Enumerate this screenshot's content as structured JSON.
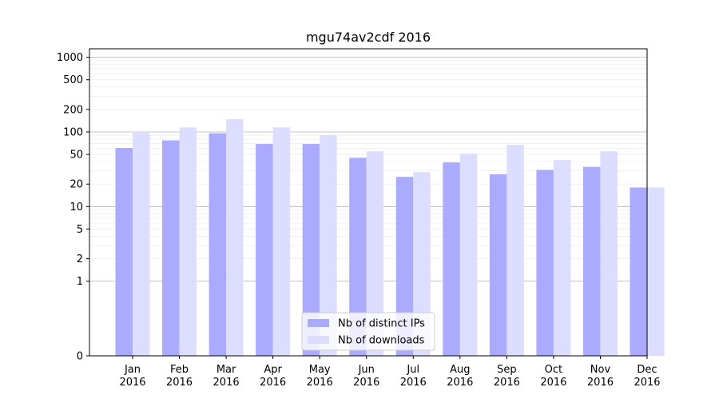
{
  "chart_data": {
    "type": "bar",
    "title": "mgu74av2cdf 2016",
    "xlabel": "",
    "ylabel": "",
    "yscale": "symlog",
    "ylim": [
      0,
      1300
    ],
    "y_ticks": [
      0,
      1,
      2,
      5,
      10,
      20,
      50,
      100,
      200,
      500,
      1000
    ],
    "categories": [
      [
        "Jan",
        "2016"
      ],
      [
        "Feb",
        "2016"
      ],
      [
        "Mar",
        "2016"
      ],
      [
        "Apr",
        "2016"
      ],
      [
        "May",
        "2016"
      ],
      [
        "Jun",
        "2016"
      ],
      [
        "Jul",
        "2016"
      ],
      [
        "Aug",
        "2016"
      ],
      [
        "Sep",
        "2016"
      ],
      [
        "Oct",
        "2016"
      ],
      [
        "Nov",
        "2016"
      ],
      [
        "Dec",
        "2016"
      ]
    ],
    "series": [
      {
        "name": "Nb of distinct IPs",
        "color": "#aaaaff",
        "values": [
          61,
          77,
          96,
          69,
          69,
          45,
          25,
          39,
          27,
          31,
          34,
          18
        ]
      },
      {
        "name": "Nb of downloads",
        "color": "#ddddff",
        "values": [
          100,
          115,
          148,
          115,
          91,
          55,
          29,
          51,
          67,
          42,
          55,
          18
        ]
      }
    ],
    "grid": true,
    "legend_position": "bottom-center"
  }
}
